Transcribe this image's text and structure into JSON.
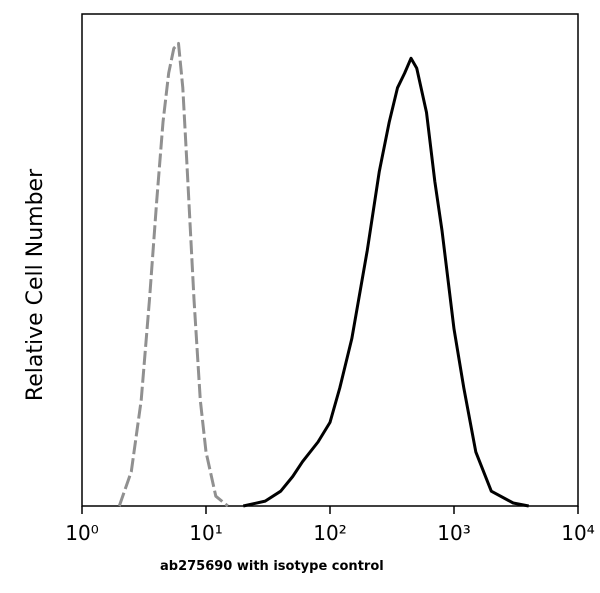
{
  "chart_data": {
    "type": "line",
    "y_label": "Relative Cell Number",
    "caption": "ab275690 with isotype control",
    "log_x": true,
    "xlim": [
      1,
      10000
    ],
    "ylim": [
      0,
      100
    ],
    "xticks": [
      {
        "value": 1,
        "label": "10⁰"
      },
      {
        "value": 10,
        "label": "10¹"
      },
      {
        "value": 100,
        "label": "10²"
      },
      {
        "value": 1000,
        "label": "10³"
      },
      {
        "value": 10000,
        "label": "10⁴"
      }
    ],
    "series": [
      {
        "color": "#909090",
        "dashed": true,
        "x": [
          2,
          2.5,
          3,
          3.5,
          4,
          4.5,
          5,
          5.5,
          6,
          6.5,
          7,
          8,
          9,
          10,
          12,
          15
        ],
        "values": [
          0,
          7,
          21.5,
          42,
          62,
          78,
          88,
          93,
          94,
          85,
          70,
          42,
          21.5,
          11,
          2,
          0
        ]
      },
      {
        "color": "#000000",
        "dashed": false,
        "x": [
          20,
          30,
          40,
          50,
          60,
          80,
          100,
          120,
          150,
          200,
          250,
          300,
          350,
          400,
          450,
          500,
          600,
          700,
          800,
          1000,
          1200,
          1500,
          2000,
          3000,
          4000
        ],
        "values": [
          0,
          1,
          3,
          6,
          9,
          13,
          17,
          24,
          34,
          52,
          68,
          78,
          85,
          88,
          91,
          89,
          80,
          66,
          56,
          36,
          24,
          11,
          3,
          0.6,
          0
        ]
      }
    ]
  }
}
